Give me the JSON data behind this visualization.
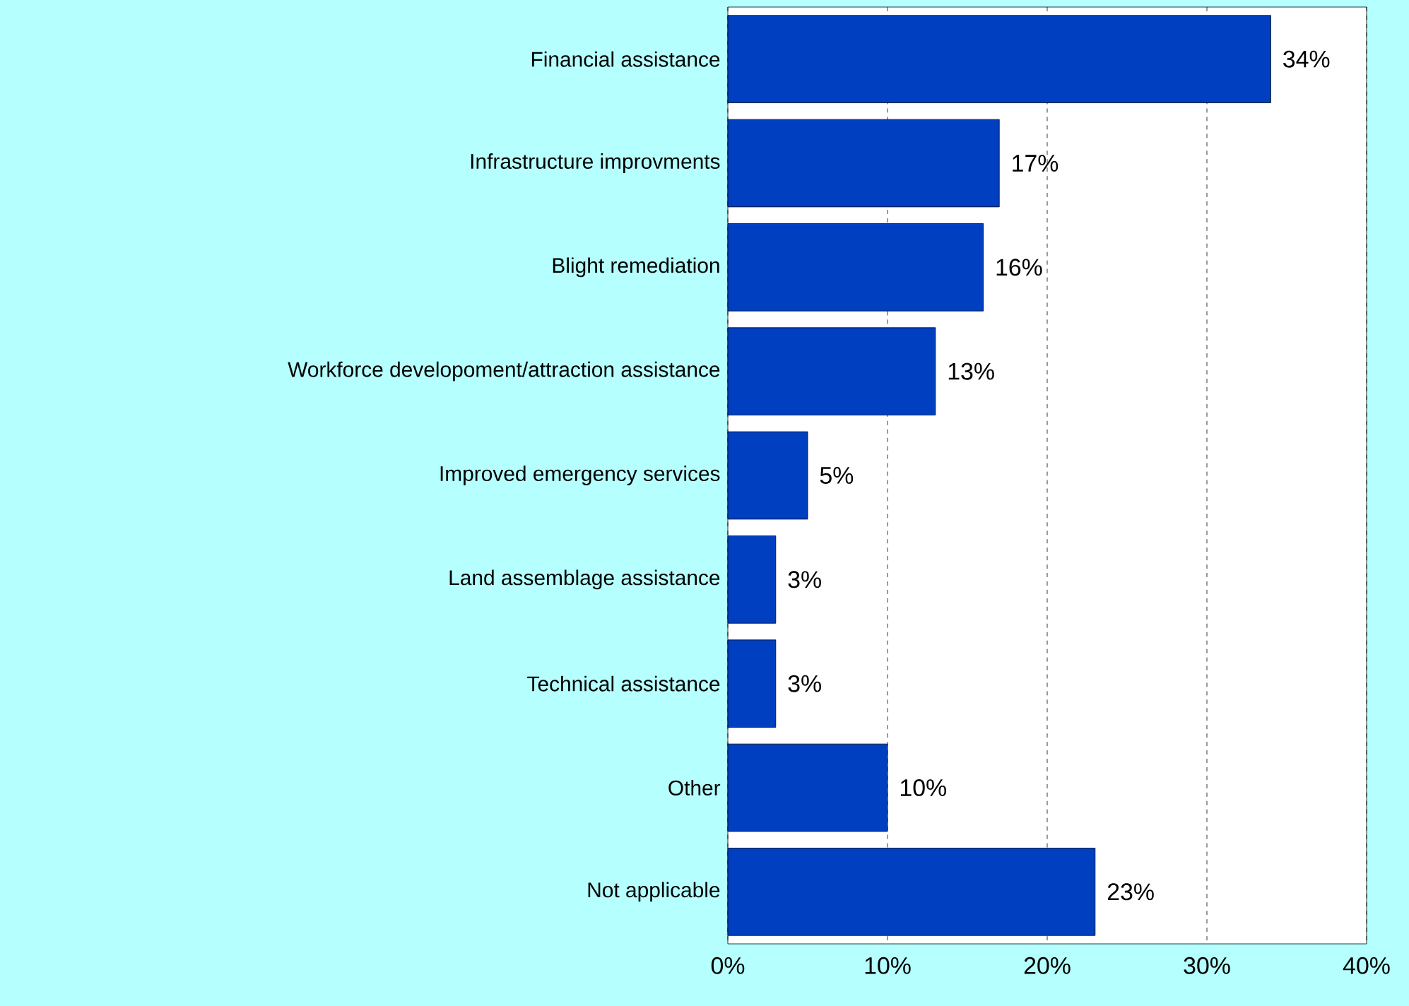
{
  "chart_data": {
    "type": "bar",
    "orientation": "horizontal",
    "categories": [
      "Financial assistance",
      "Infrastructure improvments",
      "Blight remediation",
      "Workforce developoment/attraction assistance",
      "Improved emergency services",
      "Land assemblage assistance",
      "Technical assistance",
      "Other",
      "Not applicable"
    ],
    "values": [
      34,
      17,
      16,
      13,
      5,
      3,
      3,
      10,
      23
    ],
    "value_labels": [
      "34%",
      "17%",
      "16%",
      "13%",
      "5%",
      "3%",
      "3%",
      "10%",
      "23%"
    ],
    "color": "#0040c0",
    "xlim": [
      0,
      40
    ],
    "xticks": [
      {
        "value": 0,
        "label": "0%"
      },
      {
        "value": 10,
        "label": "10%"
      },
      {
        "value": 20,
        "label": "20%"
      },
      {
        "value": 30,
        "label": "30%"
      },
      {
        "value": 40,
        "label": "40%"
      }
    ],
    "grid": "x"
  }
}
